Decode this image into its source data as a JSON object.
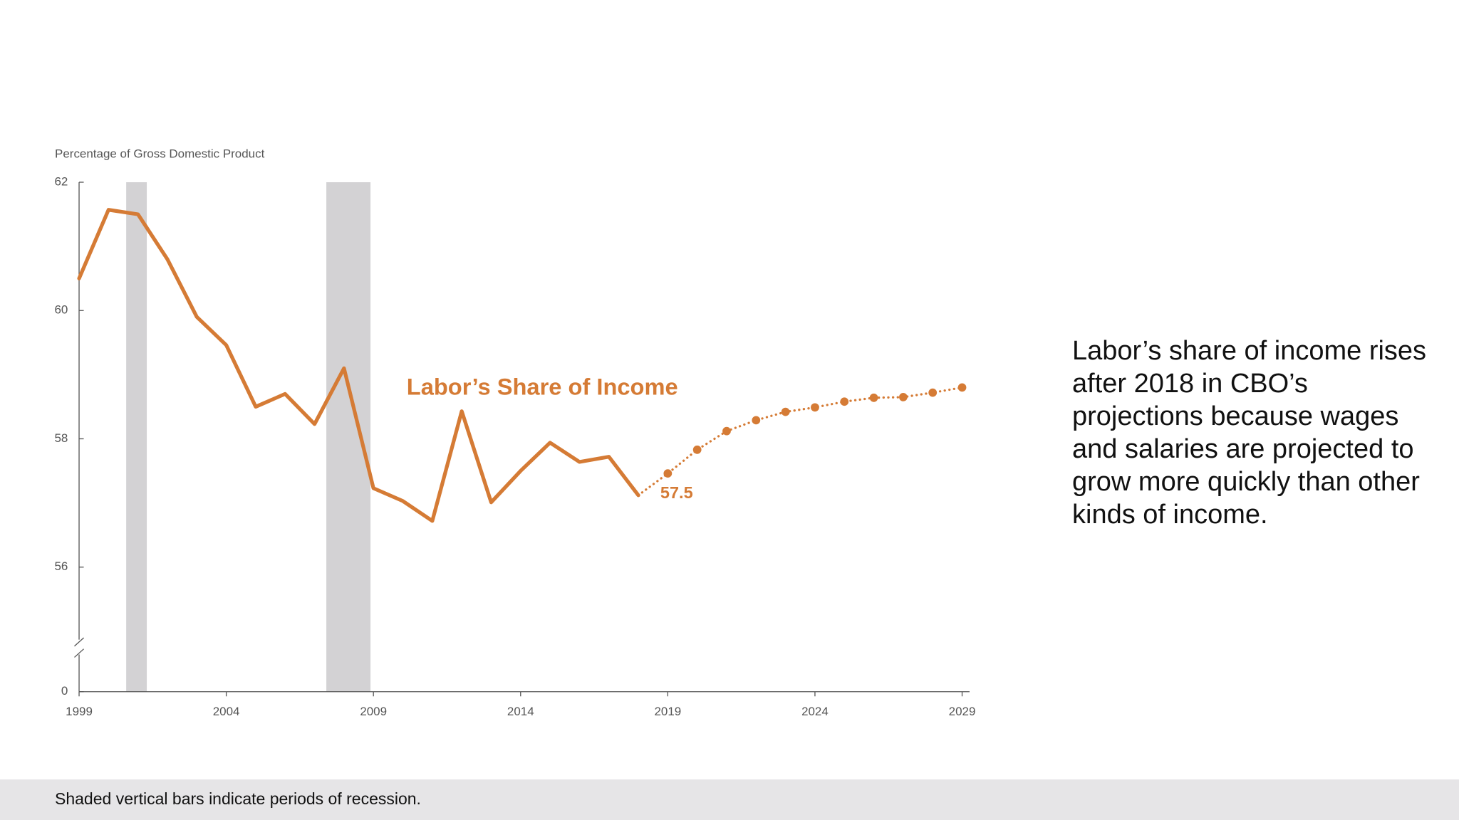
{
  "chart_data": {
    "type": "line",
    "y_label": "Percentage of Gross Domestic Product",
    "annotation": "Labor’s Share of Income",
    "x": [
      1999,
      2000,
      2001,
      2002,
      2003,
      2004,
      2005,
      2006,
      2007,
      2008,
      2009,
      2010,
      2011,
      2012,
      2013,
      2014,
      2015,
      2016,
      2017,
      2018,
      2019,
      2020,
      2021,
      2022,
      2023,
      2024,
      2025,
      2026,
      2027,
      2028,
      2029
    ],
    "series": [
      {
        "color": "#d57b35",
        "style": "solid",
        "values": [
          60.5,
          61.57,
          61.5,
          60.8,
          59.9,
          59.46,
          58.5,
          58.7,
          58.23,
          59.1,
          57.23,
          57.03,
          56.72,
          58.43,
          57.01,
          57.5,
          57.94,
          57.64,
          57.72,
          57.12,
          null,
          null,
          null,
          null,
          null,
          null,
          null,
          null,
          null,
          null,
          null
        ]
      },
      {
        "color": "#d57b35",
        "style": "dotted",
        "values": [
          null,
          null,
          null,
          null,
          null,
          null,
          null,
          null,
          null,
          null,
          null,
          null,
          null,
          null,
          null,
          null,
          null,
          null,
          null,
          57.12,
          57.46,
          57.83,
          58.12,
          58.29,
          58.42,
          58.49,
          58.58,
          58.64,
          58.65,
          58.72,
          58.8
        ],
        "value_labels": [
          null,
          null,
          null,
          null,
          null,
          null,
          null,
          null,
          null,
          null,
          null,
          null,
          null,
          null,
          null,
          null,
          null,
          null,
          null,
          null,
          "57.5",
          null,
          null,
          null,
          null,
          null,
          null,
          null,
          null,
          null,
          null
        ]
      }
    ],
    "recessions": [
      [
        2000.6,
        2001.3
      ],
      [
        2007.4,
        2008.9
      ]
    ],
    "recession_color": "#d3d2d4",
    "xlim": [
      1999,
      2029
    ],
    "xticks": [
      1999,
      2004,
      2009,
      2014,
      2019,
      2024,
      2029
    ],
    "ylim": [
      0,
      62
    ],
    "yticks": [
      0,
      56,
      58,
      60,
      62
    ],
    "axis_break": true,
    "note": "Labor’s share of income rises after 2018 in CBO’s projections because wages and salaries are projected to grow more quickly than other kinds of income.",
    "footnote": "Shaded vertical bars indicate periods of recession."
  }
}
